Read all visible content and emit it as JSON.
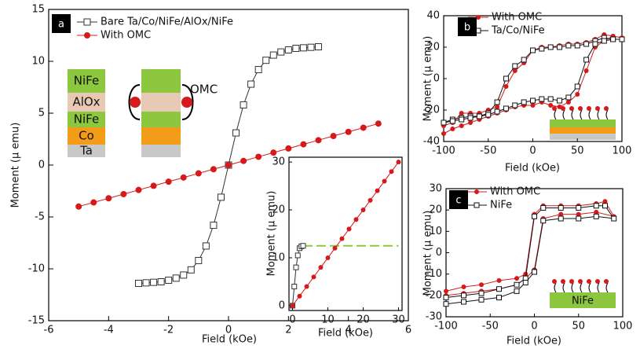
{
  "chart_data": [
    {
      "type": "line",
      "panel_label": "a",
      "x_label": "Field (kOe)",
      "y_label": "Moment (μ emu)",
      "xlim": [
        -6,
        6
      ],
      "ylim": [
        -15,
        15
      ],
      "xticks": [
        -6,
        -4,
        -2,
        0,
        2,
        4,
        6
      ],
      "yticks": [
        -15,
        -10,
        -5,
        0,
        5,
        10,
        15
      ],
      "stack_labels": [
        "NiFe",
        "AlOx",
        "NiFe",
        "Co",
        "Ta"
      ],
      "omc_label": "OMC",
      "series": [
        {
          "name": "Bare Ta/Co/NiFe/AlOx/NiFe",
          "color": "#333333",
          "marker": "square",
          "x": [
            -3,
            -2.75,
            -2.5,
            -2.25,
            -2,
            -1.75,
            -1.5,
            -1.25,
            -1,
            -0.75,
            -0.5,
            -0.25,
            0,
            0.25,
            0.5,
            0.75,
            1,
            1.25,
            1.5,
            1.75,
            2,
            2.25,
            2.5,
            2.75,
            3
          ],
          "values": [
            -11.4,
            -11.35,
            -11.3,
            -11.25,
            -11.1,
            -10.9,
            -10.6,
            -10.1,
            -9.2,
            -7.8,
            -5.8,
            -3.1,
            0,
            3.1,
            5.8,
            7.8,
            9.2,
            10.1,
            10.6,
            10.9,
            11.1,
            11.25,
            11.3,
            11.35,
            11.4
          ]
        },
        {
          "name": "With OMC",
          "color": "#d7191c",
          "marker": "circle",
          "x": [
            -5,
            -4.5,
            -4,
            -3.5,
            -3,
            -2.5,
            -2,
            -1.5,
            -1,
            -0.5,
            0,
            0.5,
            1,
            1.5,
            2,
            2.5,
            3,
            3.5,
            4,
            4.5,
            5
          ],
          "values": [
            -4,
            -3.6,
            -3.2,
            -2.8,
            -2.4,
            -2,
            -1.6,
            -1.2,
            -0.8,
            -0.4,
            0,
            0.4,
            0.8,
            1.2,
            1.6,
            2,
            2.4,
            2.8,
            3.2,
            3.6,
            4
          ]
        }
      ]
    },
    {
      "type": "line",
      "x_label": "Field (kOe)",
      "y_label": "Moment (μ emu)",
      "xlim": [
        -1,
        31
      ],
      "ylim": [
        -1,
        31
      ],
      "xticks": [
        0,
        10,
        20,
        30
      ],
      "yticks": [
        0,
        10,
        20,
        30
      ],
      "series": [
        {
          "color": "#8dc63f",
          "marker": "none",
          "dash": true,
          "x": [
            3,
            30
          ],
          "values": [
            12.5,
            12.5
          ]
        },
        {
          "color": "#333333",
          "marker": "square",
          "x": [
            0,
            0.5,
            1,
            1.5,
            2,
            2.5,
            3
          ],
          "values": [
            0,
            4,
            8,
            10.5,
            12,
            12.4,
            12.5
          ]
        },
        {
          "color": "#d7191c",
          "marker": "circle",
          "x": [
            0,
            2,
            4,
            6,
            8,
            10,
            12,
            14,
            16,
            18,
            20,
            22,
            24,
            26,
            28,
            30
          ],
          "values": [
            0,
            2,
            4,
            6,
            8,
            10,
            12,
            14,
            16,
            18,
            20,
            22,
            24,
            26,
            28,
            30
          ]
        }
      ]
    },
    {
      "type": "line",
      "panel_label": "b",
      "x_label": "Field (kOe)",
      "y_label": "Moment (μ emu)",
      "xlim": [
        -100,
        100
      ],
      "ylim": [
        -40,
        40
      ],
      "xticks": [
        -100,
        -50,
        0,
        50,
        100
      ],
      "yticks": [
        -40,
        -20,
        0,
        20,
        40
      ],
      "series": [
        {
          "name": "With OMC",
          "color": "#d7191c",
          "marker": "circle",
          "x": [
            -100,
            -90,
            -80,
            -70,
            -60,
            -50,
            -40,
            -30,
            -20,
            -10,
            0,
            10,
            20,
            30,
            40,
            50,
            60,
            70,
            80,
            90,
            100,
            90,
            80,
            70,
            60,
            50,
            40,
            30,
            20,
            10,
            0,
            -10,
            -20,
            -30,
            -40,
            -50,
            -60,
            -70,
            -80,
            -90,
            -100
          ],
          "values": [
            -30,
            -28,
            -22,
            -22,
            -22,
            -20,
            -18,
            -5,
            5,
            10,
            18,
            20,
            20,
            21,
            22,
            22,
            23,
            25,
            28,
            27,
            26,
            27,
            24,
            20,
            5,
            -10,
            -15,
            -18,
            -17,
            -15,
            -17,
            -17,
            -18,
            -20,
            -22,
            -24,
            -26,
            -28,
            -30,
            -32,
            -35
          ]
        },
        {
          "name": "Ta/Co/NiFe",
          "color": "#111111",
          "marker": "square",
          "x": [
            -100,
            -90,
            -80,
            -70,
            -60,
            -50,
            -40,
            -30,
            -20,
            -10,
            0,
            10,
            20,
            30,
            40,
            50,
            60,
            70,
            80,
            90,
            100,
            90,
            80,
            70,
            60,
            50,
            40,
            30,
            20,
            10,
            0,
            -10,
            -20,
            -30,
            -40,
            -50,
            -60,
            -70,
            -80,
            -90,
            -100
          ],
          "values": [
            -28,
            -26,
            -25,
            -24,
            -24,
            -22,
            -15,
            0,
            8,
            12,
            18,
            19,
            20,
            20,
            21,
            21,
            22,
            24,
            26,
            25,
            25,
            25,
            24,
            22,
            12,
            -5,
            -12,
            -14,
            -13,
            -13,
            -14,
            -15,
            -17,
            -19,
            -21,
            -23,
            -24,
            -25,
            -26,
            -27,
            -28
          ]
        }
      ]
    },
    {
      "type": "line",
      "panel_label": "c",
      "x_label": "Field (kOe)",
      "y_label": "Moment (μ emu)",
      "layer_label": "NiFe",
      "xlim": [
        -100,
        100
      ],
      "ylim": [
        -30,
        30
      ],
      "xticks": [
        -100,
        -50,
        0,
        50,
        100
      ],
      "yticks": [
        -30,
        -20,
        -10,
        0,
        10,
        20,
        30
      ],
      "series": [
        {
          "name": "With OMC",
          "color": "#d7191c",
          "marker": "circle",
          "x": [
            -100,
            -80,
            -60,
            -40,
            -20,
            -10,
            0,
            10,
            30,
            50,
            70,
            80,
            90,
            70,
            50,
            30,
            10,
            0,
            -10,
            -20,
            -40,
            -60,
            -80,
            -100
          ],
          "values": [
            -18,
            -16,
            -15,
            -13,
            -12,
            -10,
            18,
            22,
            22,
            22,
            23,
            24,
            17,
            19,
            18,
            18,
            16,
            -8,
            -12,
            -15,
            -17,
            -18,
            -19,
            -20
          ]
        },
        {
          "name": "NiFe",
          "color": "#111111",
          "marker": "square",
          "x": [
            -100,
            -80,
            -60,
            -40,
            -20,
            -10,
            0,
            10,
            30,
            50,
            70,
            80,
            90,
            70,
            50,
            30,
            10,
            0,
            -10,
            -20,
            -40,
            -60,
            -80,
            -100
          ],
          "values": [
            -21,
            -20,
            -19,
            -17,
            -15,
            -12,
            17,
            21,
            21,
            21,
            22,
            22,
            16,
            17,
            16,
            16,
            15,
            -9,
            -14,
            -18,
            -21,
            -22,
            -23,
            -24
          ]
        }
      ]
    }
  ]
}
